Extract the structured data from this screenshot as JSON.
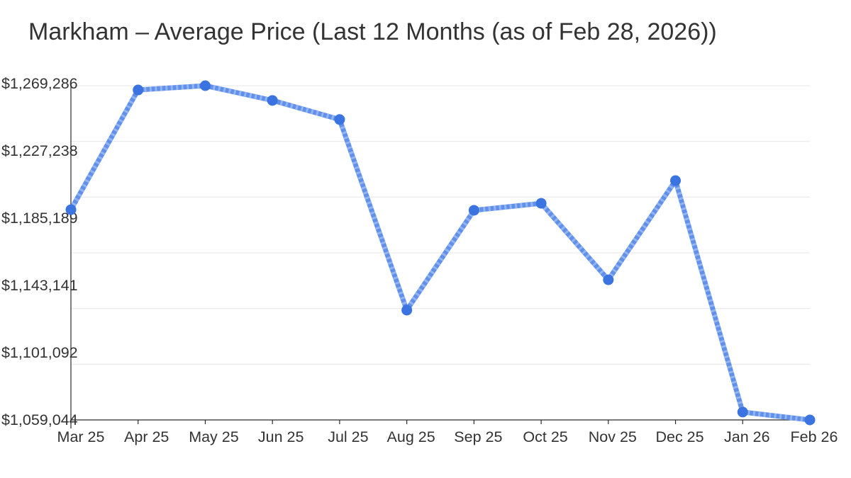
{
  "title": "Markham – Average Price (Last 12 Months (as of Feb 28, 2026))",
  "chart_data": {
    "type": "line",
    "title": "Markham – Average Price (Last 12 Months (as of Feb 28, 2026))",
    "xlabel": "",
    "ylabel": "",
    "x": [
      "Mar 25",
      "Apr 25",
      "May 25",
      "Jun 25",
      "Jul 25",
      "Aug 25",
      "Sep 25",
      "Oct 25",
      "Nov 25",
      "Dec 25",
      "Jan 26",
      "Feb 26"
    ],
    "series": [
      {
        "name": "Average Price",
        "values": [
          1191300,
          1266600,
          1269286,
          1260000,
          1248000,
          1128100,
          1190900,
          1195300,
          1147200,
          1209600,
          1064000,
          1059044
        ]
      }
    ],
    "ylim": [
      1059044,
      1269286
    ],
    "y_ticks": [
      "$1,059,044",
      "$1,101,092",
      "$1,143,141",
      "$1,185,189",
      "$1,227,238",
      "$1,269,286"
    ],
    "y_tick_values": [
      1059044,
      1101092,
      1143141,
      1185189,
      1227238,
      1269286
    ],
    "grid": true,
    "legend": false,
    "colors": {
      "line": "#6090ea",
      "line_stripe": "#93b4f2",
      "marker": "#3b73e0",
      "grid": "#ececec",
      "axis": "#2b2b2b",
      "tick_text": "#333333"
    }
  }
}
